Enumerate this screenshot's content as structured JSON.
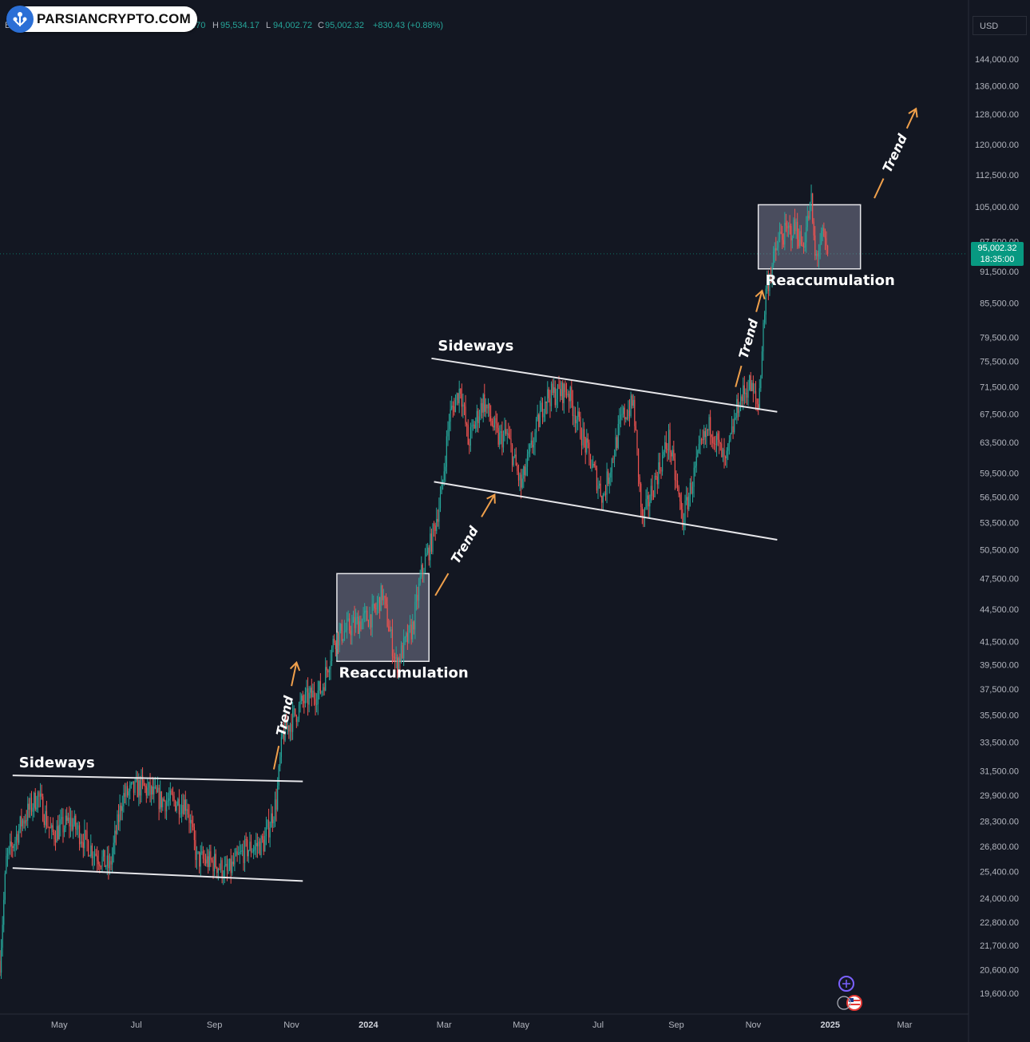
{
  "watermark": {
    "logo_text": "PARSIANCRYPTO.COM"
  },
  "ohlc_header": {
    "symbol_initial": "B",
    "open_partial": "1.70",
    "high_label": "H",
    "high": "95,534.17",
    "low_label": "L",
    "low": "94,002.72",
    "close_label": "C",
    "close": "95,002.32",
    "change": "+830.43 (+0.88%)"
  },
  "price_axis": {
    "currency": "USD",
    "current_price": "95,002.32",
    "countdown": "18:35:00"
  },
  "colors": {
    "background": "#131722",
    "up": "#26a69a",
    "down": "#ef5350",
    "arrow": "#f0a04b",
    "box_fill": "#8f90a8",
    "price_tag": "#089981"
  },
  "icons": [
    "parsiancrypto-logo-icon",
    "plus-circle-icon",
    "us-flag-icon"
  ],
  "chart_data": {
    "type": "candlestick",
    "title": "",
    "xlabel": "",
    "ylabel": "",
    "scale": "log",
    "ylim": [
      19000,
      150000
    ],
    "x_range": [
      "2023-03-15",
      "2025-04-20"
    ],
    "grid": false,
    "y_ticks": [
      144000,
      136000,
      128000,
      120000,
      112500,
      105000,
      97500,
      91500,
      85500,
      79500,
      75500,
      71500,
      67500,
      63500,
      59500,
      56500,
      53500,
      50500,
      47500,
      44500,
      41500,
      39500,
      37500,
      35500,
      33500,
      31500,
      29900,
      28300,
      26800,
      25400,
      24000,
      22800,
      21700,
      20600,
      19600
    ],
    "y_tick_labels": [
      "144,000.00",
      "136,000.00",
      "128,000.00",
      "120,000.00",
      "112,500.00",
      "105,000.00",
      "97,500.00",
      "91,500.00",
      "85,500.00",
      "79,500.00",
      "75,500.00",
      "71,500.00",
      "67,500.00",
      "63,500.00",
      "59,500.00",
      "56,500.00",
      "53,500.00",
      "50,500.00",
      "47,500.00",
      "44,500.00",
      "41,500.00",
      "39,500.00",
      "37,500.00",
      "35,500.00",
      "33,500.00",
      "31,500.00",
      "29,900.00",
      "28,300.00",
      "26,800.00",
      "25,400.00",
      "24,000.00",
      "22,800.00",
      "21,700.00",
      "20,600.00",
      "19,600.00"
    ],
    "x_ticks": [
      {
        "date": "2023-05-01",
        "label": "May"
      },
      {
        "date": "2023-07-01",
        "label": "Jul"
      },
      {
        "date": "2023-09-01",
        "label": "Sep"
      },
      {
        "date": "2023-11-01",
        "label": "Nov"
      },
      {
        "date": "2024-01-01",
        "label": "2024",
        "bold": true
      },
      {
        "date": "2024-03-01",
        "label": "Mar"
      },
      {
        "date": "2024-05-01",
        "label": "May"
      },
      {
        "date": "2024-07-01",
        "label": "Jul"
      },
      {
        "date": "2024-09-01",
        "label": "Sep"
      },
      {
        "date": "2024-11-01",
        "label": "Nov"
      },
      {
        "date": "2025-01-01",
        "label": "2025",
        "bold": true
      },
      {
        "date": "2025-03-01",
        "label": "Mar"
      }
    ],
    "price_path": [
      [
        "2023-03-15",
        21000
      ],
      [
        "2023-03-20",
        26000
      ],
      [
        "2023-04-01",
        28200
      ],
      [
        "2023-04-14",
        29900
      ],
      [
        "2023-04-25",
        27500
      ],
      [
        "2023-05-10",
        28300
      ],
      [
        "2023-05-25",
        26800
      ],
      [
        "2023-06-10",
        25600
      ],
      [
        "2023-06-20",
        29800
      ],
      [
        "2023-07-05",
        30500
      ],
      [
        "2023-07-20",
        29600
      ],
      [
        "2023-08-10",
        29400
      ],
      [
        "2023-08-18",
        26100
      ],
      [
        "2023-09-01",
        25900
      ],
      [
        "2023-09-11",
        25300
      ],
      [
        "2023-09-25",
        26600
      ],
      [
        "2023-10-10",
        27000
      ],
      [
        "2023-10-20",
        29500
      ],
      [
        "2023-10-25",
        34000
      ],
      [
        "2023-11-10",
        36500
      ],
      [
        "2023-11-25",
        37500
      ],
      [
        "2023-12-05",
        41800
      ],
      [
        "2023-12-20",
        43000
      ],
      [
        "2024-01-05",
        44000
      ],
      [
        "2024-01-12",
        46000
      ],
      [
        "2024-01-23",
        39500
      ],
      [
        "2024-02-05",
        42800
      ],
      [
        "2024-02-12",
        48000
      ],
      [
        "2024-02-20",
        51500
      ],
      [
        "2024-02-28",
        57000
      ],
      [
        "2024-03-05",
        67000
      ],
      [
        "2024-03-14",
        71500
      ],
      [
        "2024-03-20",
        63500
      ],
      [
        "2024-04-01",
        69500
      ],
      [
        "2024-04-13",
        64000
      ],
      [
        "2024-04-20",
        64500
      ],
      [
        "2024-05-01",
        57800
      ],
      [
        "2024-05-20",
        70000
      ],
      [
        "2024-06-07",
        71000
      ],
      [
        "2024-06-25",
        61000
      ],
      [
        "2024-07-05",
        56500
      ],
      [
        "2024-07-20",
        67000
      ],
      [
        "2024-07-29",
        69000
      ],
      [
        "2024-08-05",
        53500
      ],
      [
        "2024-08-15",
        58500
      ],
      [
        "2024-08-26",
        64000
      ],
      [
        "2024-09-06",
        53800
      ],
      [
        "2024-09-20",
        62500
      ],
      [
        "2024-09-28",
        66000
      ],
      [
        "2024-10-10",
        60500
      ],
      [
        "2024-10-20",
        69000
      ],
      [
        "2024-10-29",
        72000
      ],
      [
        "2024-11-05",
        68500
      ],
      [
        "2024-11-11",
        88000
      ],
      [
        "2024-11-22",
        98500
      ],
      [
        "2024-12-05",
        100500
      ],
      [
        "2024-12-10",
        96500
      ],
      [
        "2024-12-17",
        106000
      ],
      [
        "2024-12-20",
        94000
      ],
      [
        "2024-12-26",
        98500
      ],
      [
        "2024-12-30",
        95002
      ]
    ],
    "annotations": [
      {
        "type": "line",
        "label": "Sideways",
        "p1": [
          "2023-03-25",
          31200
        ],
        "p2": [
          "2023-11-10",
          30800
        ]
      },
      {
        "type": "line",
        "p1": [
          "2023-03-25",
          25600
        ],
        "p2": [
          "2023-11-10",
          24900
        ]
      },
      {
        "type": "arrow",
        "label": "Trend",
        "p1": [
          "2023-10-18",
          31600
        ],
        "p2": [
          "2023-11-05",
          39700
        ]
      },
      {
        "type": "box",
        "label": "Reaccumulation",
        "x1": "2023-12-07",
        "x2": "2024-02-18",
        "y1": 39800,
        "y2": 48000
      },
      {
        "type": "arrow",
        "label": "Trend",
        "p1": [
          "2024-02-23",
          45800
        ],
        "p2": [
          "2024-04-10",
          56800
        ]
      },
      {
        "type": "line",
        "label": "Sideways",
        "p1": [
          "2024-02-20",
          76000
        ],
        "p2": [
          "2024-11-20",
          67800
        ]
      },
      {
        "type": "line",
        "p1": [
          "2024-02-22",
          58400
        ],
        "p2": [
          "2024-11-20",
          51600
        ]
      },
      {
        "type": "arrow",
        "label": "Trend",
        "p1": [
          "2024-10-18",
          71500
        ],
        "p2": [
          "2024-11-08",
          87800
        ]
      },
      {
        "type": "box",
        "label": "Reaccumulation",
        "x1": "2024-11-05",
        "x2": "2025-01-25",
        "y1": 92000,
        "y2": 105500
      },
      {
        "type": "arrow",
        "label": "Trend",
        "p1": [
          "2025-02-05",
          107000
        ],
        "p2": [
          "2025-03-10",
          129500
        ]
      }
    ]
  }
}
